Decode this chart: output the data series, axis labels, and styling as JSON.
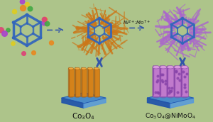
{
  "bg_color": "#adc48a",
  "arrow_color": "#3355aa",
  "text_label1": "Co$_3$O$_4$",
  "text_label2": "Co$_3$O$_4$@NiMoO$_4$",
  "text_ni_mo": "Ni$^{2+}$:Mo$^{7+}$",
  "fig_width": 3.0,
  "fig_height": 1.72,
  "dpi": 100,
  "co3o4_color": "#d4821a",
  "co3o4_side": "#a85e10",
  "co3o4_top": "#f0a840",
  "nimoo4_color": "#c07acc",
  "nimoo4_side": "#8844aa",
  "nimoo4_top": "#d899dd",
  "base_color": "#4488cc",
  "base_dark": "#2255aa",
  "base_left": "#3366bb",
  "base_right": "#5599dd",
  "frame_blue": "#3366bb",
  "orange_branch": "#cc7718",
  "purple_branch": "#aa66cc",
  "dot_orange": "#e88820",
  "dot_purple": "#aa44cc",
  "dot_green": "#44aa44",
  "dot_pink": "#dd4477",
  "dot_yellow": "#ddcc22"
}
